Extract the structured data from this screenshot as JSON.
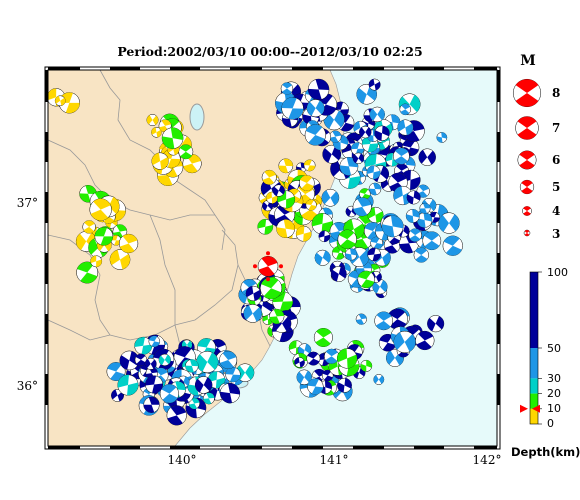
{
  "title": "Period:2002/03/10 00:00--2012/03/10 02:25",
  "axes": {
    "lat_labels": [
      {
        "value": 37,
        "text": "37°"
      },
      {
        "value": 36,
        "text": "36°"
      }
    ],
    "lon_labels": [
      {
        "value": 140,
        "text": "140°"
      },
      {
        "value": 141,
        "text": "141°"
      },
      {
        "value": 142,
        "text": "142°"
      }
    ],
    "lon_range": [
      139.1,
      142.1
    ],
    "lat_range": [
      35.75,
      37.8
    ]
  },
  "magnitude_legend": {
    "title": "M",
    "items": [
      {
        "label": "8",
        "magnitude": 8
      },
      {
        "label": "7",
        "magnitude": 7
      },
      {
        "label": "6",
        "magnitude": 6
      },
      {
        "label": "5",
        "magnitude": 5
      },
      {
        "label": "4",
        "magnitude": 4
      },
      {
        "label": "3",
        "magnitude": 3
      }
    ],
    "color": "#ff0000"
  },
  "depth_scale": {
    "title": "Depth(km)",
    "labels": [
      "100",
      "50",
      "30",
      "20",
      "10",
      "0"
    ],
    "values": [
      100,
      50,
      30,
      20,
      10,
      0
    ],
    "colors": {
      "shallow_0_10": "#ffd700",
      "d10_20": "#22ee00",
      "d20_30": "#00d0c8",
      "d30_50": "#1e96e6",
      "deep_50_100": "#000099"
    },
    "marker_depth": 10
  },
  "colors": {
    "land": "#f8e4c4",
    "sea": "#e6fafa",
    "lake": "#ccf2f6",
    "boundary": "#999999",
    "highlight": "#ff0000"
  },
  "highlighted_event": {
    "lon": 140.57,
    "lat": 36.73
  }
}
